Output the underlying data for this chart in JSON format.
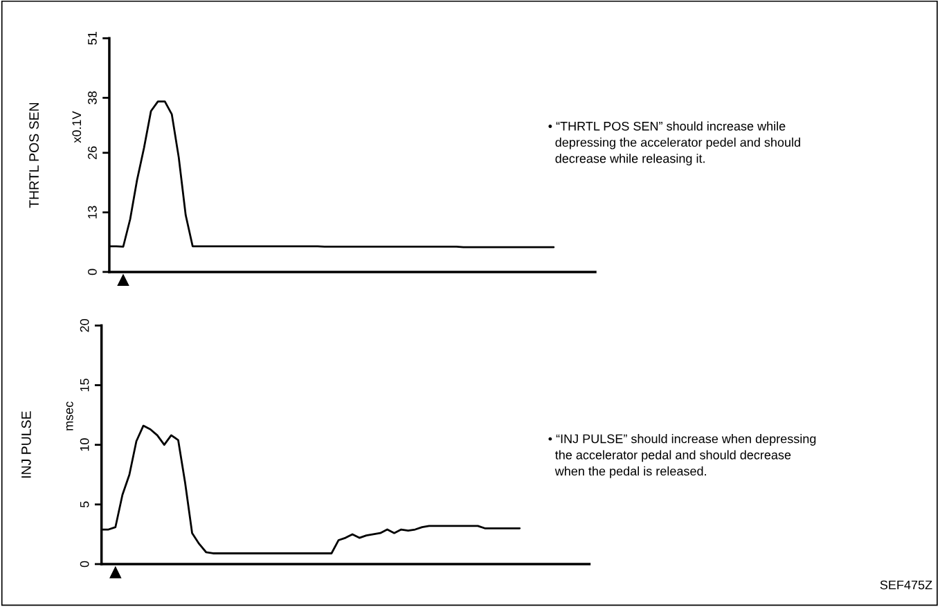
{
  "chart_data": [
    {
      "type": "line",
      "ylabel": "THRTL POS SEN",
      "annotations": [
        "x0.1V",
        "• “THRTL POS SEN” should increase while\n  depressing the accelerator pedel and should\n  decrease while releasing it."
      ],
      "categories": [
        null,
        null,
        null,
        null,
        null,
        null,
        null,
        null,
        null,
        null,
        null,
        null,
        null,
        null,
        null,
        null,
        null,
        null,
        null,
        null,
        null,
        null,
        null,
        null,
        null,
        null,
        null,
        null,
        null,
        null,
        null,
        null,
        null,
        null,
        null,
        null,
        null,
        null,
        null,
        null,
        null,
        null,
        null,
        null,
        null,
        null,
        null,
        null,
        null,
        null,
        null,
        null,
        null,
        null,
        null,
        null,
        null,
        null,
        null,
        null,
        null,
        null,
        null,
        null,
        null,
        null,
        null,
        null,
        null,
        null,
        null
      ],
      "series": [
        {
          "color": "#000000",
          "values": [
            5.6,
            5.6,
            5.5,
            11.5,
            20.1,
            27.1,
            35.1,
            37.2,
            37.2,
            34.4,
            25.0,
            12.4,
            5.6,
            5.6,
            5.6,
            5.6,
            5.6,
            5.6,
            5.6,
            5.6,
            5.6,
            5.6,
            5.6,
            5.6,
            5.6,
            5.6,
            5.6,
            5.6,
            5.6,
            5.6,
            5.6,
            5.5,
            5.5,
            5.5,
            5.5,
            5.5,
            5.5,
            5.5,
            5.5,
            5.5,
            5.5,
            5.5,
            5.5,
            5.5,
            5.5,
            5.5,
            5.5,
            5.5,
            5.5,
            5.5,
            5.5,
            5.4,
            5.4,
            5.4,
            5.4,
            5.4,
            5.4,
            5.4,
            5.4,
            5.4,
            5.4,
            5.4,
            5.4,
            5.4,
            5.4,
            null,
            null,
            null,
            null,
            null,
            null
          ]
        }
      ],
      "ylim": [
        0,
        51
      ],
      "yticks": [
        0,
        13,
        26,
        38,
        51
      ],
      "tick_labels": "y",
      "grid": false,
      "legend": false,
      "line_style": "solid"
    },
    {
      "type": "line",
      "ylabel": "INJ PULSE",
      "annotations": [
        "msec",
        "• “INJ PULSE” should increase when depressing\n  the accelerator pedal and should decrease\n  when the pedal is released.",
        "SEF475Z"
      ],
      "categories": [
        null,
        null,
        null,
        null,
        null,
        null,
        null,
        null,
        null,
        null,
        null,
        null,
        null,
        null,
        null,
        null,
        null,
        null,
        null,
        null,
        null,
        null,
        null,
        null,
        null,
        null,
        null,
        null,
        null,
        null,
        null,
        null,
        null,
        null,
        null,
        null,
        null,
        null,
        null,
        null,
        null,
        null,
        null,
        null,
        null,
        null,
        null,
        null,
        null,
        null,
        null,
        null,
        null,
        null,
        null,
        null,
        null,
        null,
        null,
        null,
        null,
        null,
        null,
        null,
        null,
        null,
        null,
        null,
        null,
        null,
        null
      ],
      "series": [
        {
          "color": "#000000",
          "values": [
            2.9,
            2.9,
            3.1,
            5.8,
            7.5,
            10.3,
            11.6,
            11.3,
            10.8,
            10.0,
            10.8,
            10.4,
            6.8,
            2.6,
            1.7,
            1.0,
            0.9,
            0.9,
            0.9,
            0.9,
            0.9,
            0.9,
            0.9,
            0.9,
            0.9,
            0.9,
            0.9,
            0.9,
            0.9,
            0.9,
            0.9,
            0.9,
            0.9,
            0.9,
            2.0,
            2.2,
            2.5,
            2.2,
            2.4,
            2.5,
            2.6,
            2.9,
            2.6,
            2.9,
            2.8,
            2.9,
            3.1,
            3.2,
            3.2,
            3.2,
            3.2,
            3.2,
            3.2,
            3.2,
            3.2,
            3.0,
            3.0,
            3.0,
            3.0,
            3.0,
            3.0,
            null,
            null,
            null,
            null,
            null,
            null,
            null,
            null,
            null,
            null
          ]
        }
      ],
      "ylim": [
        0,
        20
      ],
      "yticks": [
        0,
        5,
        10,
        15,
        20
      ],
      "tick_labels": "y",
      "grid": false,
      "legend": false,
      "line_style": "solid"
    }
  ]
}
